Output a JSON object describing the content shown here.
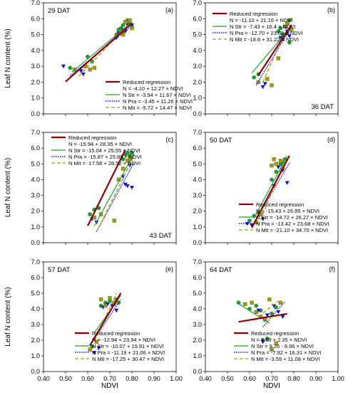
{
  "figure": {
    "ylabel": "Leaf N content (%)",
    "xlabel": "NDVI",
    "xticks": [
      "0.40",
      "0.50",
      "0.60",
      "0.70",
      "0.80",
      "0.90",
      "1.00"
    ],
    "yticks": [
      "0.0",
      "1.0",
      "2.0",
      "3.0",
      "4.0",
      "5.0",
      "6.0",
      "7.0"
    ],
    "colors": {
      "reduced": "#8b0000",
      "str": "#1e9e32",
      "pra": "#1010cc",
      "mit": "#9a9a1e"
    }
  },
  "chart_data": [
    {
      "type": "scatter",
      "panel_label": "(a)",
      "stage": "29 DAT",
      "xlim": [
        0.4,
        1.0
      ],
      "ylim": [
        0.0,
        7.0
      ],
      "legend_title": "Reduced regression",
      "series": [
        {
          "name": "N = -4.10 + 12.27 × NDVI",
          "key": "reduced",
          "line": {
            "intercept": -4.1,
            "slope": 12.27,
            "x": [
              0.5,
              0.8
            ]
          },
          "points": []
        },
        {
          "name": "N Str = -3.54 + 11.67 × NDVI",
          "key": "str",
          "line": {
            "intercept": -3.54,
            "slope": 11.67,
            "x": [
              0.53,
              0.8
            ]
          },
          "points": [
            [
              0.52,
              2.9
            ],
            [
              0.6,
              3.6
            ],
            [
              0.62,
              3.3
            ],
            [
              0.73,
              5.0
            ],
            [
              0.74,
              5.3
            ],
            [
              0.75,
              5.4
            ],
            [
              0.76,
              5.6
            ],
            [
              0.77,
              5.3
            ],
            [
              0.78,
              5.9
            ],
            [
              0.79,
              5.7
            ],
            [
              0.8,
              5.5
            ]
          ]
        },
        {
          "name": "N Pra = -3.45 + 11.26 × NDVI",
          "key": "pra",
          "line": {
            "intercept": -3.45,
            "slope": 11.26,
            "x": [
              0.52,
              0.8
            ]
          },
          "points": [
            [
              0.49,
              3.0
            ],
            [
              0.57,
              2.7
            ],
            [
              0.58,
              2.5
            ],
            [
              0.73,
              4.8
            ],
            [
              0.74,
              5.1
            ],
            [
              0.76,
              5.3
            ],
            [
              0.77,
              5.2
            ],
            [
              0.78,
              5.6
            ],
            [
              0.8,
              5.6
            ]
          ]
        },
        {
          "name": "N Mit = -5.72 + 14.47 × NDVI",
          "key": "mit",
          "line": {
            "intercept": -5.72,
            "slope": 14.47,
            "x": [
              0.56,
              0.8
            ]
          },
          "points": [
            [
              0.54,
              2.8
            ],
            [
              0.59,
              3.0
            ],
            [
              0.61,
              2.8
            ],
            [
              0.63,
              2.9
            ],
            [
              0.73,
              4.9
            ],
            [
              0.75,
              5.2
            ],
            [
              0.76,
              5.0
            ],
            [
              0.77,
              5.8
            ],
            [
              0.79,
              5.9
            ],
            [
              0.8,
              5.4
            ]
          ]
        }
      ]
    },
    {
      "type": "scatter",
      "panel_label": "(b)",
      "stage": "36 DAT",
      "xlim": [
        0.4,
        1.0
      ],
      "ylim": [
        0.0,
        7.0
      ],
      "legend_title": "Reduced regression",
      "series": [
        {
          "name": "N = -11.10 + 21.16 × NDVI",
          "key": "reduced",
          "line": {
            "intercept": -11.1,
            "slope": 21.16,
            "x": [
              0.64,
              0.79
            ]
          },
          "points": []
        },
        {
          "name": "N Str = -7.43 + 16.4 × NDVI",
          "key": "str",
          "line": {
            "intercept": -7.43,
            "slope": 16.4,
            "x": [
              0.61,
              0.79
            ]
          },
          "points": [
            [
              0.62,
              2.3
            ],
            [
              0.64,
              2.5
            ],
            [
              0.73,
              5.2
            ],
            [
              0.74,
              5.4
            ],
            [
              0.75,
              5.0
            ],
            [
              0.76,
              5.5
            ],
            [
              0.77,
              5.1
            ],
            [
              0.78,
              5.9
            ],
            [
              0.78,
              4.5
            ]
          ]
        },
        {
          "name": "N Pra = -12.70 + 23.05 × NDVI",
          "key": "pra",
          "line": {
            "intercept": -12.7,
            "slope": 23.05,
            "x": [
              0.63,
              0.79
            ]
          },
          "points": [
            [
              0.66,
              1.7
            ],
            [
              0.67,
              1.9
            ],
            [
              0.74,
              4.8
            ],
            [
              0.76,
              5.0
            ],
            [
              0.77,
              5.2
            ],
            [
              0.78,
              4.9
            ],
            [
              0.79,
              5.3
            ]
          ]
        },
        {
          "name": "N Mit = -18.6 + 31.22 × NDVI",
          "key": "mit",
          "line": {
            "intercept": -18.6,
            "slope": 31.22,
            "x": [
              0.66,
              0.79
            ]
          },
          "points": [
            [
              0.64,
              2.0
            ],
            [
              0.68,
              2.2
            ],
            [
              0.7,
              1.8
            ],
            [
              0.73,
              3.5
            ],
            [
              0.75,
              4.7
            ],
            [
              0.76,
              5.5
            ],
            [
              0.77,
              5.7
            ],
            [
              0.79,
              5.3
            ]
          ]
        }
      ]
    },
    {
      "type": "scatter",
      "panel_label": "(c)",
      "stage": "43 DAT",
      "xlim": [
        0.4,
        1.0
      ],
      "ylim": [
        0.0,
        7.0
      ],
      "legend_title": "Reduced regression",
      "series": [
        {
          "name": "N = -15.94 + 28.35 × NDVI",
          "key": "reduced",
          "line": {
            "intercept": -15.94,
            "slope": 28.35,
            "x": [
              0.6,
              0.77
            ]
          },
          "points": []
        },
        {
          "name": "N Str = -15.04 + 25.55 × NDVI",
          "key": "str",
          "line": {
            "intercept": -15.04,
            "slope": 25.55,
            "x": [
              0.63,
              0.81
            ]
          },
          "points": [
            [
              0.61,
              1.8
            ],
            [
              0.63,
              2.1
            ],
            [
              0.65,
              2.2
            ],
            [
              0.76,
              5.3
            ],
            [
              0.77,
              5.6
            ],
            [
              0.78,
              5.7
            ],
            [
              0.79,
              5.5
            ],
            [
              0.8,
              5.7
            ]
          ]
        },
        {
          "name": "N Pra = -15.87 + 25.89 × NDVI",
          "key": "pra",
          "line": {
            "intercept": -15.87,
            "slope": 25.89,
            "x": [
              0.64,
              0.81
            ]
          },
          "points": [
            [
              0.62,
              1.5
            ],
            [
              0.64,
              1.3
            ],
            [
              0.76,
              4.2
            ],
            [
              0.77,
              3.7
            ],
            [
              0.78,
              3.6
            ],
            [
              0.79,
              4.9
            ],
            [
              0.8,
              3.5
            ]
          ]
        },
        {
          "name": "N Mit = -17.58 + 28.52 × NDVI",
          "key": "mit",
          "line": {
            "intercept": -17.58,
            "slope": 28.52,
            "x": [
              0.65,
              0.81
            ]
          },
          "points": [
            [
              0.63,
              1.6
            ],
            [
              0.66,
              1.8
            ],
            [
              0.72,
              1.4
            ],
            [
              0.74,
              4.0
            ],
            [
              0.76,
              4.7
            ],
            [
              0.78,
              5.2
            ],
            [
              0.79,
              5.3
            ]
          ]
        }
      ]
    },
    {
      "type": "scatter",
      "panel_label": "(d)",
      "stage": "50 DAT",
      "xlim": [
        0.4,
        1.0
      ],
      "ylim": [
        0.0,
        7.0
      ],
      "legend_title": "Reduced regression",
      "series": [
        {
          "name": "N = -15.43 + 26.85 × NDVI",
          "key": "reduced",
          "line": {
            "intercept": -15.43,
            "slope": 26.85,
            "x": [
              0.61,
              0.78
            ]
          },
          "points": []
        },
        {
          "name": "N Str = -14.72 + 26.27 × NDVI",
          "key": "str",
          "line": {
            "intercept": -14.72,
            "slope": 26.27,
            "x": [
              0.62,
              0.77
            ]
          },
          "points": [
            [
              0.6,
              1.4
            ],
            [
              0.62,
              1.7
            ],
            [
              0.64,
              1.9
            ],
            [
              0.7,
              4.0
            ],
            [
              0.72,
              4.5
            ],
            [
              0.74,
              5.0
            ],
            [
              0.75,
              5.1
            ],
            [
              0.76,
              5.3
            ]
          ]
        },
        {
          "name": "N Pra = -13.42 + 23.68 × NDVI",
          "key": "pra",
          "line": {
            "intercept": -13.42,
            "slope": 23.68,
            "x": [
              0.62,
              0.78
            ]
          },
          "points": [
            [
              0.59,
              1.2
            ],
            [
              0.61,
              1.1
            ],
            [
              0.66,
              1.5
            ],
            [
              0.71,
              3.6
            ],
            [
              0.73,
              4.8
            ],
            [
              0.75,
              4.6
            ],
            [
              0.77,
              3.8
            ]
          ]
        },
        {
          "name": "N Mit = -21.10 + 34.70 × NDVI",
          "key": "mit",
          "line": {
            "intercept": -21.1,
            "slope": 34.7,
            "x": [
              0.64,
              0.76
            ]
          },
          "points": [
            [
              0.63,
              1.3
            ],
            [
              0.65,
              1.8
            ],
            [
              0.7,
              4.9
            ],
            [
              0.71,
              5.3
            ],
            [
              0.72,
              5.0
            ],
            [
              0.74,
              5.2
            ],
            [
              0.75,
              4.8
            ]
          ]
        }
      ]
    },
    {
      "type": "scatter",
      "panel_label": "(e)",
      "stage": "57 DAT",
      "xlim": [
        0.4,
        1.0
      ],
      "ylim": [
        0.0,
        7.0
      ],
      "legend_title": "Reduced regression",
      "series": [
        {
          "name": "N = -12.94 + 23.94 × NDVI",
          "key": "reduced",
          "line": {
            "intercept": -12.94,
            "slope": 23.94,
            "x": [
              0.61,
              0.75
            ]
          },
          "points": []
        },
        {
          "name": "N Str = -10.07 + 19.91 × NDVI",
          "key": "str",
          "line": {
            "intercept": -10.07,
            "slope": 19.91,
            "x": [
              0.63,
              0.75
            ]
          },
          "points": [
            [
              0.62,
              1.6
            ],
            [
              0.66,
              4.2
            ],
            [
              0.68,
              4.4
            ],
            [
              0.7,
              4.5
            ],
            [
              0.72,
              4.3
            ],
            [
              0.73,
              4.6
            ],
            [
              0.74,
              4.4
            ]
          ]
        },
        {
          "name": "N Pra = -11.19 + 21.06 × NDVI",
          "key": "pra",
          "line": {
            "intercept": -11.19,
            "slope": 21.06,
            "x": [
              0.63,
              0.75
            ]
          },
          "points": [
            [
              0.63,
              1.2
            ],
            [
              0.65,
              1.5
            ],
            [
              0.67,
              4.1
            ],
            [
              0.69,
              4.3
            ],
            [
              0.71,
              4.2
            ],
            [
              0.73,
              3.9
            ]
          ]
        },
        {
          "name": "N Mit = -17.25 + 30.47 × NDVI",
          "key": "mit",
          "line": {
            "intercept": -17.25,
            "slope": 30.47,
            "x": [
              0.63,
              0.73
            ]
          },
          "points": [
            [
              0.61,
              1.4
            ],
            [
              0.64,
              1.9
            ],
            [
              0.66,
              4.6
            ],
            [
              0.68,
              4.2
            ],
            [
              0.7,
              4.7
            ],
            [
              0.72,
              4.4
            ],
            [
              0.73,
              4.5
            ]
          ]
        }
      ]
    },
    {
      "type": "scatter",
      "panel_label": "(f)",
      "stage": "64 DAT",
      "xlim": [
        0.4,
        1.0
      ],
      "ylim": [
        0.0,
        7.0
      ],
      "legend_title": "Reduced regression",
      "series": [
        {
          "name": "N = 1.88 + 2.35 × NDVI",
          "key": "reduced",
          "line": {
            "intercept": 1.88,
            "slope": 2.35,
            "x": [
              0.55,
              0.77
            ]
          },
          "points": []
        },
        {
          "name": "N Str = 9.26 - 8.96 × NDVI",
          "key": "str",
          "line": {
            "intercept": 9.26,
            "slope": -8.96,
            "x": [
              0.55,
              0.69
            ]
          },
          "points": [
            [
              0.55,
              4.4
            ],
            [
              0.6,
              4.0
            ],
            [
              0.63,
              4.2
            ],
            [
              0.65,
              3.9
            ],
            [
              0.66,
              2.0
            ],
            [
              0.68,
              2.1
            ],
            [
              0.7,
              3.7
            ],
            [
              0.72,
              4.1
            ]
          ]
        },
        {
          "name": "N Pra = -7.92 + 16.31 × NDVI",
          "key": "pra",
          "line": {
            "intercept": -7.92,
            "slope": 16.31,
            "x": [
              0.66,
              0.76
            ]
          },
          "points": [
            [
              0.64,
              3.9
            ],
            [
              0.66,
              1.9
            ],
            [
              0.68,
              3.6
            ],
            [
              0.71,
              4.2
            ],
            [
              0.73,
              3.8
            ],
            [
              0.75,
              3.5
            ]
          ]
        },
        {
          "name": "N Mit = -3.59 + 11.08 × NDVI",
          "key": "mit",
          "line": {
            "intercept": -3.59,
            "slope": 11.08,
            "x": [
              0.62,
              0.73
            ]
          },
          "points": [
            [
              0.58,
              4.3
            ],
            [
              0.61,
              4.4
            ],
            [
              0.63,
              3.8
            ],
            [
              0.65,
              3.5
            ],
            [
              0.67,
              3.3
            ],
            [
              0.69,
              4.6
            ],
            [
              0.7,
              1.4
            ],
            [
              0.72,
              1.8
            ],
            [
              0.74,
              4.4
            ]
          ]
        }
      ]
    }
  ]
}
